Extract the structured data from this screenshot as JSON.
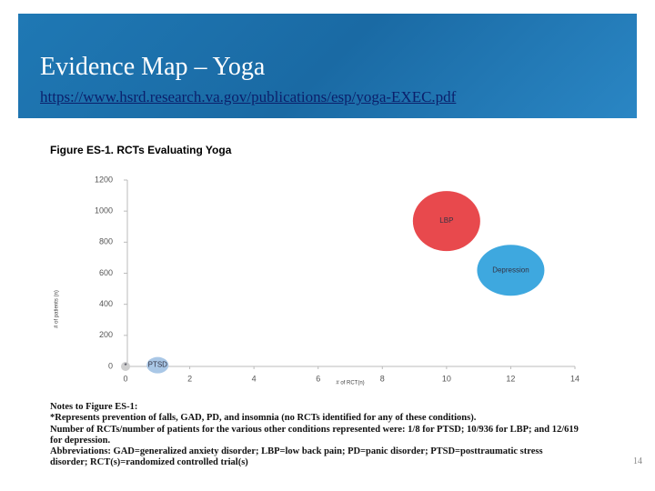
{
  "slide": {
    "title": "Evidence Map – Yoga",
    "url": "https://www.hsrd.research.va.gov/publications/esp/yoga-EXEC.pdf",
    "page_number": "14"
  },
  "chart_data": {
    "type": "bubble",
    "title": "Figure ES-1. RCTs Evaluating Yoga",
    "x_label": "# of RCT(n)",
    "y_label": "# of patients (n)",
    "categories": [
      "*",
      "PTSD",
      "LBP",
      "Depression"
    ],
    "x": [
      0,
      1,
      10,
      12
    ],
    "values": [
      0,
      8,
      936,
      619
    ],
    "colors": [
      "#cfcfcf",
      "#a9c7e6",
      "#e8494d",
      "#3ea8df"
    ],
    "xlim": [
      0,
      14
    ],
    "xticks": [
      0,
      2,
      4,
      6,
      8,
      10,
      12,
      14
    ],
    "ylim": [
      0,
      1200
    ],
    "yticks": [
      0,
      200,
      400,
      600,
      800,
      1000,
      1200
    ]
  },
  "notes": [
    "Notes to Figure ES-1:",
    "*Represents prevention of falls, GAD, PD, and insomnia (no RCTs identified for any of these conditions).",
    "Number of RCTs/number of patients for the various other conditions represented were: 1/8 for PTSD; 10/936 for LBP; and 12/619 for depression.",
    "Abbreviations: GAD=generalized anxiety disorder; LBP=low back pain; PD=panic disorder; PTSD=posttraumatic stress disorder; RCT(s)=randomized controlled trial(s)"
  ]
}
